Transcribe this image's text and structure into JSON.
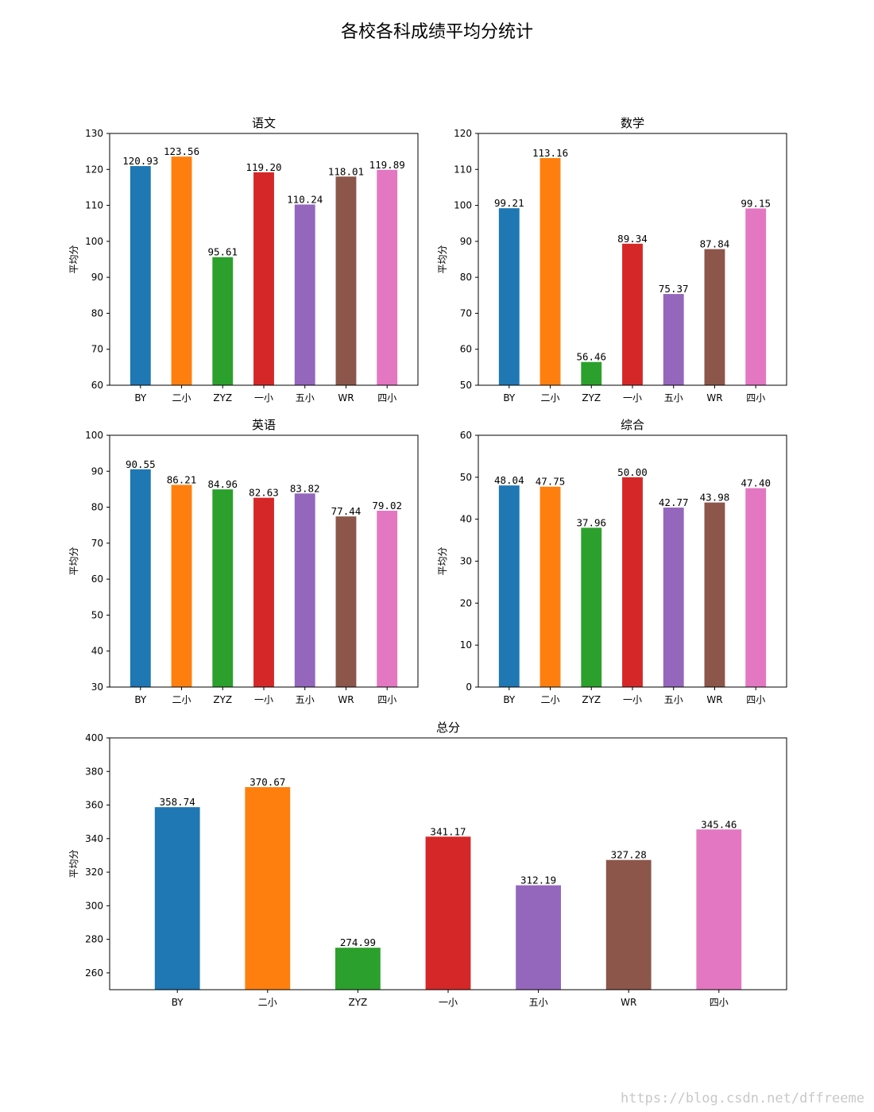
{
  "suptitle": "各校各科成绩平均分统计",
  "watermark": "https://blog.csdn.net/dffreeme",
  "colors": [
    "#1f77b4",
    "#ff7f0e",
    "#2ca02c",
    "#d62728",
    "#9467bd",
    "#8c564b",
    "#e377c2"
  ],
  "chart_data": [
    {
      "type": "bar",
      "title": "语文",
      "ylabel": "平均分",
      "categories": [
        "BY",
        "二小",
        "ZYZ",
        "一小",
        "五小",
        "WR",
        "四小"
      ],
      "values": [
        120.93,
        123.56,
        95.61,
        119.2,
        110.24,
        118.01,
        119.89
      ],
      "labels": [
        "120.93",
        "123.56",
        "95.61",
        "119.20",
        "110.24",
        "118.01",
        "119.89"
      ],
      "ylim": [
        60,
        130
      ],
      "yticks": [
        60,
        70,
        80,
        90,
        100,
        110,
        120,
        130
      ]
    },
    {
      "type": "bar",
      "title": "数学",
      "ylabel": "平均分",
      "categories": [
        "BY",
        "二小",
        "ZYZ",
        "一小",
        "五小",
        "WR",
        "四小"
      ],
      "values": [
        99.21,
        113.16,
        56.46,
        89.34,
        75.37,
        87.84,
        99.15
      ],
      "labels": [
        "99.21",
        "113.16",
        "56.46",
        "89.34",
        "75.37",
        "87.84",
        "99.15"
      ],
      "ylim": [
        50,
        120
      ],
      "yticks": [
        50,
        60,
        70,
        80,
        90,
        100,
        110,
        120
      ]
    },
    {
      "type": "bar",
      "title": "英语",
      "ylabel": "平均分",
      "categories": [
        "BY",
        "二小",
        "ZYZ",
        "一小",
        "五小",
        "WR",
        "四小"
      ],
      "values": [
        90.55,
        86.21,
        84.96,
        82.63,
        83.82,
        77.44,
        79.02
      ],
      "labels": [
        "90.55",
        "86.21",
        "84.96",
        "82.63",
        "83.82",
        "77.44",
        "79.02"
      ],
      "ylim": [
        30,
        100
      ],
      "yticks": [
        30,
        40,
        50,
        60,
        70,
        80,
        90,
        100
      ]
    },
    {
      "type": "bar",
      "title": "综合",
      "ylabel": "平均分",
      "categories": [
        "BY",
        "二小",
        "ZYZ",
        "一小",
        "五小",
        "WR",
        "四小"
      ],
      "values": [
        48.04,
        47.75,
        37.96,
        50.0,
        42.77,
        43.98,
        47.4
      ],
      "labels": [
        "48.04",
        "47.75",
        "37.96",
        "50.00",
        "42.77",
        "43.98",
        "47.40"
      ],
      "ylim": [
        0,
        60
      ],
      "yticks": [
        0,
        10,
        20,
        30,
        40,
        50,
        60
      ]
    },
    {
      "type": "bar",
      "title": "总分",
      "ylabel": "平均分",
      "categories": [
        "BY",
        "二小",
        "ZYZ",
        "一小",
        "五小",
        "WR",
        "四小"
      ],
      "values": [
        358.74,
        370.67,
        274.99,
        341.17,
        312.19,
        327.28,
        345.46
      ],
      "labels": [
        "358.74",
        "370.67",
        "274.99",
        "341.17",
        "312.19",
        "327.28",
        "345.46"
      ],
      "ylim": [
        250,
        400
      ],
      "yticks": [
        260,
        280,
        300,
        320,
        340,
        360,
        380,
        400
      ]
    }
  ]
}
